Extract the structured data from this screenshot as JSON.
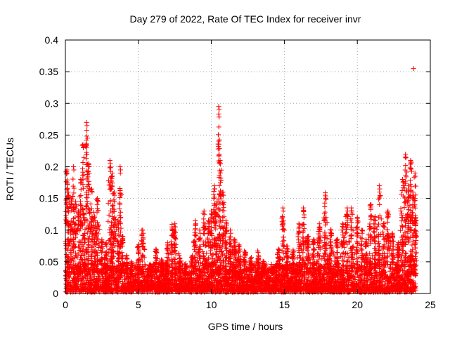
{
  "chart_data": {
    "type": "scatter",
    "title": "Day 279 of 2022, Rate Of TEC Index for receiver invr",
    "xlabel": "GPS time / hours",
    "ylabel": "ROTI / TECUs",
    "xlim": [
      0,
      25
    ],
    "ylim": [
      0,
      0.4
    ],
    "x_ticks": [
      0,
      5,
      10,
      15,
      20,
      25
    ],
    "x_tick_labels": [
      "0",
      "5",
      "10",
      "15",
      "20",
      "25"
    ],
    "y_ticks": [
      0,
      0.05,
      0.1,
      0.15,
      0.2,
      0.25,
      0.3,
      0.35,
      0.4
    ],
    "y_tick_labels": [
      "0",
      "0.05",
      "0.1",
      "0.15",
      "0.2",
      "0.25",
      "0.3",
      "0.35",
      "0.4"
    ],
    "grid": true,
    "marker": "+",
    "marker_color": "#ff0000",
    "series": [
      {
        "name": "ROTI",
        "peaks": [
          [
            0.1,
            0.195
          ],
          [
            0.2,
            0.16
          ],
          [
            0.4,
            0.15
          ],
          [
            0.55,
            0.2
          ],
          [
            0.7,
            0.145
          ],
          [
            0.9,
            0.13
          ],
          [
            1.05,
            0.18
          ],
          [
            1.2,
            0.235
          ],
          [
            1.3,
            0.12
          ],
          [
            1.45,
            0.27
          ],
          [
            1.6,
            0.205
          ],
          [
            1.8,
            0.165
          ],
          [
            2.0,
            0.12
          ],
          [
            2.2,
            0.15
          ],
          [
            2.5,
            0.085
          ],
          [
            2.8,
            0.08
          ],
          [
            3.05,
            0.21
          ],
          [
            3.2,
            0.19
          ],
          [
            3.35,
            0.16
          ],
          [
            3.6,
            0.115
          ],
          [
            3.75,
            0.2
          ],
          [
            3.9,
            0.09
          ],
          [
            4.2,
            0.06
          ],
          [
            4.5,
            0.05
          ],
          [
            5.0,
            0.075
          ],
          [
            5.3,
            0.1
          ],
          [
            5.8,
            0.045
          ],
          [
            6.2,
            0.07
          ],
          [
            6.6,
            0.05
          ],
          [
            7.0,
            0.08
          ],
          [
            7.3,
            0.105
          ],
          [
            7.5,
            0.11
          ],
          [
            7.8,
            0.06
          ],
          [
            8.2,
            0.04
          ],
          [
            8.7,
            0.06
          ],
          [
            8.9,
            0.115
          ],
          [
            9.2,
            0.1
          ],
          [
            9.5,
            0.13
          ],
          [
            9.8,
            0.115
          ],
          [
            10.0,
            0.13
          ],
          [
            10.2,
            0.17
          ],
          [
            10.35,
            0.14
          ],
          [
            10.5,
            0.295
          ],
          [
            10.6,
            0.21
          ],
          [
            10.8,
            0.16
          ],
          [
            11.0,
            0.115
          ],
          [
            11.3,
            0.1
          ],
          [
            11.6,
            0.085
          ],
          [
            11.9,
            0.075
          ],
          [
            12.3,
            0.065
          ],
          [
            12.7,
            0.055
          ],
          [
            13.2,
            0.065
          ],
          [
            13.6,
            0.05
          ],
          [
            14.2,
            0.04
          ],
          [
            14.6,
            0.07
          ],
          [
            14.9,
            0.135
          ],
          [
            15.2,
            0.075
          ],
          [
            15.6,
            0.065
          ],
          [
            16.0,
            0.11
          ],
          [
            16.3,
            0.135
          ],
          [
            16.6,
            0.09
          ],
          [
            17.0,
            0.085
          ],
          [
            17.4,
            0.11
          ],
          [
            17.8,
            0.155
          ],
          [
            18.2,
            0.1
          ],
          [
            18.6,
            0.085
          ],
          [
            19.0,
            0.11
          ],
          [
            19.3,
            0.135
          ],
          [
            19.6,
            0.135
          ],
          [
            20.0,
            0.12
          ],
          [
            20.3,
            0.1
          ],
          [
            20.6,
            0.085
          ],
          [
            20.9,
            0.14
          ],
          [
            21.2,
            0.12
          ],
          [
            21.5,
            0.17
          ],
          [
            21.8,
            0.11
          ],
          [
            22.1,
            0.13
          ],
          [
            22.4,
            0.095
          ],
          [
            22.8,
            0.08
          ],
          [
            23.1,
            0.18
          ],
          [
            23.3,
            0.22
          ],
          [
            23.5,
            0.17
          ],
          [
            23.65,
            0.21
          ],
          [
            23.8,
            0.16
          ],
          [
            23.95,
            0.19
          ],
          [
            24.0,
            0.12
          ]
        ],
        "outliers": [
          [
            23.85,
            0.355
          ]
        ]
      }
    ]
  }
}
